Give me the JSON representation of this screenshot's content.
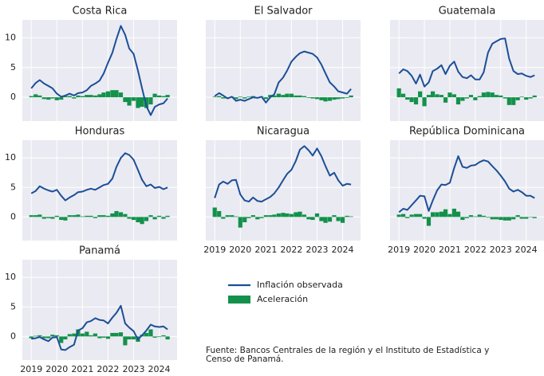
{
  "axes": {
    "x": [
      2019,
      2019.17,
      2019.33,
      2019.5,
      2019.67,
      2019.83,
      2020,
      2020.17,
      2020.33,
      2020.5,
      2020.67,
      2020.83,
      2021,
      2021.17,
      2021.33,
      2021.5,
      2021.67,
      2021.83,
      2022,
      2022.17,
      2022.33,
      2022.5,
      2022.67,
      2022.83,
      2023,
      2023.17,
      2023.33,
      2023.5,
      2023.67,
      2023.83,
      2024,
      2024.17,
      2024.33
    ],
    "xlim": [
      2018.65,
      2024.7
    ],
    "xticks": [
      2019,
      2020,
      2021,
      2022,
      2023,
      2024
    ],
    "ylim": [
      -4,
      13
    ],
    "yticks": [
      0,
      5,
      10
    ],
    "grid": true
  },
  "chart_data": [
    {
      "type": "line-bar",
      "title": "Costa Rica",
      "series": [
        {
          "name": "Inflación observada",
          "color": "#1b4f96",
          "values": [
            1.5,
            2.4,
            2.9,
            2.3,
            1.9,
            1.5,
            0.6,
            0.1,
            0.3,
            0.6,
            0.3,
            0.7,
            0.8,
            1.2,
            1.9,
            2.3,
            2.8,
            4.0,
            5.8,
            7.5,
            9.8,
            12.0,
            10.5,
            8.2,
            7.3,
            4.5,
            1.5,
            -1.5,
            -3.0,
            -1.6,
            -1.2,
            -1.0,
            -0.2
          ]
        },
        {
          "name": "Aceleración",
          "color": "#13914b",
          "values": [
            0.2,
            0.5,
            0.3,
            -0.3,
            -0.4,
            -0.2,
            -0.5,
            -0.4,
            0.2,
            0.2,
            -0.2,
            0.3,
            0.2,
            0.4,
            0.4,
            0.3,
            0.5,
            0.8,
            1.0,
            1.2,
            1.2,
            0.8,
            -0.8,
            -1.4,
            -0.6,
            -1.8,
            -1.6,
            -1.8,
            -1.2,
            0.6,
            0.3,
            0.2,
            0.4
          ]
        }
      ]
    },
    {
      "type": "line-bar",
      "title": "El Salvador",
      "series": [
        {
          "name": "Inflación observada",
          "color": "#1b4f96",
          "values": [
            0.2,
            0.7,
            0.3,
            -0.2,
            0.1,
            -0.6,
            -0.4,
            -0.6,
            -0.3,
            0.0,
            -0.1,
            0.1,
            -0.9,
            0.0,
            0.5,
            2.5,
            3.3,
            4.5,
            6.0,
            6.8,
            7.4,
            7.7,
            7.5,
            7.3,
            6.7,
            5.5,
            4.0,
            2.5,
            1.8,
            1.0,
            0.8,
            0.6,
            1.4
          ]
        },
        {
          "name": "Aceleración",
          "color": "#13914b",
          "values": [
            0.1,
            0.2,
            -0.2,
            -0.2,
            0.1,
            -0.3,
            0.1,
            -0.2,
            0.1,
            0.2,
            0,
            0.1,
            -0.3,
            0.4,
            0.3,
            0.6,
            0.4,
            0.6,
            0.6,
            0.3,
            0.3,
            0.2,
            -0.1,
            -0.2,
            -0.3,
            -0.5,
            -0.7,
            -0.6,
            -0.4,
            -0.3,
            -0.2,
            -0.1,
            0.3
          ]
        }
      ]
    },
    {
      "type": "line-bar",
      "title": "Guatemala",
      "series": [
        {
          "name": "Inflación observada",
          "color": "#1b4f96",
          "values": [
            4.0,
            4.7,
            4.4,
            3.6,
            2.3,
            3.8,
            1.8,
            2.5,
            4.4,
            4.8,
            5.4,
            3.9,
            5.3,
            6.0,
            4.3,
            3.4,
            3.2,
            3.7,
            3.0,
            3.0,
            4.2,
            7.5,
            9.0,
            9.4,
            9.8,
            9.9,
            6.5,
            4.4,
            3.9,
            4.0,
            3.6,
            3.4,
            3.7
          ]
        },
        {
          "name": "Aceleración",
          "color": "#13914b",
          "values": [
            1.5,
            0.6,
            -0.4,
            -0.8,
            -1.2,
            1.0,
            -1.5,
            0.4,
            1.0,
            0.5,
            0.4,
            -0.9,
            0.8,
            0.5,
            -1.2,
            -0.6,
            -0.2,
            0.4,
            -0.5,
            0.2,
            0.8,
            0.9,
            0.8,
            0.4,
            0.3,
            -0.2,
            -1.3,
            -1.3,
            -0.5,
            0.1,
            -0.4,
            -0.2,
            0.3
          ]
        }
      ]
    },
    {
      "type": "line-bar",
      "title": "Honduras",
      "series": [
        {
          "name": "Inflación observada",
          "color": "#1b4f96",
          "values": [
            4.0,
            4.4,
            5.2,
            4.8,
            4.5,
            4.3,
            4.6,
            3.6,
            2.8,
            3.3,
            3.7,
            4.2,
            4.3,
            4.6,
            4.8,
            4.6,
            5.0,
            5.4,
            5.6,
            6.5,
            8.5,
            10.0,
            10.8,
            10.5,
            9.7,
            8.0,
            6.3,
            5.2,
            5.5,
            4.9,
            5.1,
            4.7,
            5.0
          ]
        },
        {
          "name": "Aceleración",
          "color": "#13914b",
          "values": [
            0.3,
            0.3,
            0.4,
            -0.3,
            -0.2,
            -0.3,
            0.2,
            -0.5,
            -0.6,
            0.3,
            0.3,
            0.4,
            0.1,
            0.2,
            0.2,
            -0.2,
            0.3,
            0.3,
            0.2,
            0.6,
            1.0,
            0.8,
            0.5,
            -0.3,
            -0.5,
            -0.9,
            -1.2,
            -0.7,
            0.3,
            -0.4,
            0.2,
            -0.3,
            0.2
          ]
        }
      ]
    },
    {
      "type": "line-bar",
      "title": "Nicaragua",
      "series": [
        {
          "name": "Inflación observada",
          "color": "#1b4f96",
          "values": [
            3.2,
            5.5,
            6.0,
            5.6,
            6.2,
            6.3,
            3.8,
            2.8,
            2.6,
            3.3,
            2.7,
            2.6,
            3.0,
            3.4,
            4.0,
            5.0,
            6.2,
            7.3,
            8.0,
            9.5,
            11.4,
            12.0,
            11.3,
            10.4,
            11.6,
            10.3,
            8.6,
            7.0,
            7.5,
            6.2,
            5.3,
            5.6,
            5.5
          ]
        },
        {
          "name": "Aceleración",
          "color": "#13914b",
          "values": [
            1.6,
            1.0,
            -0.3,
            0.3,
            0.3,
            0.1,
            -1.8,
            -0.9,
            -0.2,
            0.3,
            -0.4,
            -0.2,
            0.3,
            0.3,
            0.4,
            0.6,
            0.7,
            0.6,
            0.5,
            0.8,
            0.9,
            0.4,
            -0.4,
            -0.5,
            0.6,
            -0.7,
            -1.0,
            -0.8,
            0.3,
            -0.7,
            -1.0,
            0.2,
            0.1
          ]
        }
      ]
    },
    {
      "type": "line-bar",
      "title": "República Dominicana",
      "series": [
        {
          "name": "Inflación observada",
          "color": "#1b4f96",
          "values": [
            0.8,
            1.4,
            1.2,
            2.0,
            2.8,
            3.6,
            3.5,
            1.0,
            2.8,
            4.5,
            5.5,
            5.4,
            5.8,
            8.3,
            10.3,
            8.5,
            8.3,
            8.7,
            8.8,
            9.3,
            9.6,
            9.4,
            8.6,
            7.9,
            7.0,
            6.0,
            4.8,
            4.3,
            4.6,
            4.2,
            3.6,
            3.6,
            3.2
          ]
        },
        {
          "name": "Aceleración",
          "color": "#13914b",
          "values": [
            0.4,
            0.5,
            -0.2,
            0.4,
            0.5,
            0.5,
            -0.3,
            -1.5,
            0.8,
            0.8,
            0.9,
            1.3,
            0.5,
            1.4,
            0.9,
            -0.5,
            -0.2,
            0.3,
            0.1,
            0.4,
            0.2,
            -0.1,
            -0.4,
            -0.4,
            -0.5,
            -0.6,
            -0.6,
            -0.4,
            0.3,
            -0.3,
            -0.3,
            0,
            -0.2
          ]
        }
      ]
    },
    {
      "type": "line-bar",
      "title": "Panamá",
      "series": [
        {
          "name": "Inflación observada",
          "color": "#1b4f96",
          "values": [
            -0.4,
            -0.3,
            -0.1,
            -0.5,
            -0.8,
            -0.2,
            -0.1,
            -2.2,
            -2.3,
            -1.8,
            -1.4,
            1.0,
            1.4,
            2.4,
            2.6,
            3.1,
            2.8,
            2.7,
            2.2,
            3.2,
            4.0,
            5.2,
            2.2,
            1.5,
            0.9,
            -0.5,
            0.2,
            1.0,
            2.0,
            1.7,
            1.6,
            1.7,
            1.2
          ]
        },
        {
          "name": "Aceleración",
          "color": "#13914b",
          "values": [
            -0.3,
            0.1,
            0.2,
            -0.3,
            -0.3,
            0.3,
            0.2,
            -1.1,
            -0.5,
            0.4,
            0.5,
            1.2,
            0.5,
            0.8,
            0.2,
            0.5,
            -0.3,
            -0.2,
            -0.4,
            0.6,
            0.6,
            0.7,
            -1.5,
            -0.5,
            -0.5,
            -0.9,
            0.3,
            0.6,
            1.2,
            -0.2,
            -0.1,
            0.2,
            -0.5
          ]
        }
      ]
    }
  ],
  "note": [
    "Fuente:  Bancos Centrales de la región y el Instituto de Estadística y",
    "Censo de Panamá."
  ]
}
